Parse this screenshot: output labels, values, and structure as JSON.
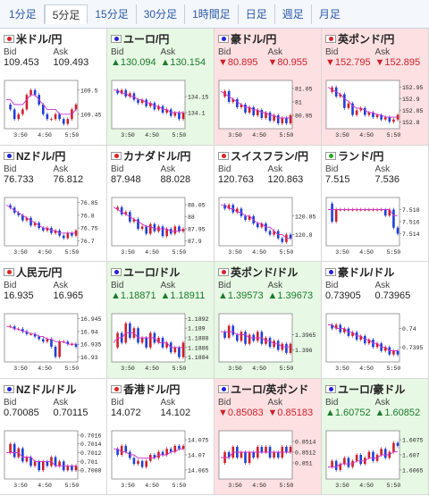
{
  "tabs": [
    {
      "label": "1分足",
      "active": false
    },
    {
      "label": "5分足",
      "active": true
    },
    {
      "label": "15分足",
      "active": false
    },
    {
      "label": "30分足",
      "active": false
    },
    {
      "label": "1時間足",
      "active": false
    },
    {
      "label": "日足",
      "active": false
    },
    {
      "label": "週足",
      "active": false
    },
    {
      "label": "月足",
      "active": false
    }
  ],
  "cards": [
    {
      "name": "米ドル/円",
      "trend": "flat",
      "bid_label": "Bid",
      "ask_label": "Ask",
      "bid": "109.453",
      "ask": "109.493",
      "flag": "red",
      "y_ticks": [
        "109.5",
        "109.45"
      ],
      "y_range": [
        109.42,
        109.52
      ],
      "x_ticks": [
        "3:50",
        "4:50",
        "5:50"
      ],
      "series": [
        109.47,
        109.46,
        109.44,
        109.45,
        109.46,
        109.49,
        109.5,
        109.49,
        109.47,
        109.45,
        109.44,
        109.44,
        109.45,
        109.44,
        109.43,
        109.44,
        109.46,
        109.47
      ],
      "ma": [
        109.48,
        109.48,
        109.47,
        109.47,
        109.47,
        109.48,
        109.49,
        109.49,
        109.48,
        109.47,
        109.46,
        109.46,
        109.46,
        109.45,
        109.45,
        109.45,
        109.45,
        109.46
      ]
    },
    {
      "name": "ユーロ/円",
      "trend": "up",
      "bid_label": "Bid",
      "ask_label": "Ask",
      "bid": "▲130.094",
      "ask": "▲130.154",
      "flag": "blue",
      "y_ticks": [
        "134.15",
        "134.1"
      ],
      "y_range": [
        134.05,
        134.2
      ],
      "x_ticks": [
        "3:50",
        "4:50",
        "5:50"
      ],
      "series": [
        134.17,
        134.16,
        134.17,
        134.15,
        134.16,
        134.14,
        134.13,
        134.14,
        134.12,
        134.13,
        134.11,
        134.12,
        134.1,
        134.11,
        134.09,
        134.1,
        134.08,
        134.1
      ],
      "ma": [
        134.17,
        134.17,
        134.16,
        134.16,
        134.15,
        134.15,
        134.14,
        134.14,
        134.13,
        134.13,
        134.12,
        134.12,
        134.11,
        134.11,
        134.1,
        134.1,
        134.1,
        134.1
      ]
    },
    {
      "name": "豪ドル/円",
      "trend": "down",
      "bid_label": "Bid",
      "ask_label": "Ask",
      "bid": "▼80.895",
      "ask": "▼80.955",
      "flag": "blue",
      "y_ticks": [
        "81.05",
        "81",
        "80.95"
      ],
      "y_range": [
        80.9,
        81.08
      ],
      "x_ticks": [
        "3:50",
        "4:50",
        "5:50"
      ],
      "series": [
        81.02,
        81.04,
        81.0,
        81.01,
        80.98,
        80.99,
        80.96,
        80.98,
        80.95,
        80.97,
        80.94,
        80.96,
        80.93,
        80.95,
        80.92,
        80.94,
        80.92,
        80.95
      ],
      "ma": [
        81.04,
        81.03,
        81.02,
        81.01,
        81.0,
        80.99,
        80.98,
        80.98,
        80.97,
        80.97,
        80.96,
        80.96,
        80.95,
        80.95,
        80.94,
        80.94,
        80.94,
        80.94
      ]
    },
    {
      "name": "英ポンド/円",
      "trend": "down",
      "bid_label": "Bid",
      "ask_label": "Ask",
      "bid": "▼152.795",
      "ask": "▼152.895",
      "flag": "red",
      "y_ticks": [
        "152.95",
        "152.9",
        "152.85",
        "152.8"
      ],
      "y_range": [
        152.77,
        152.98
      ],
      "x_ticks": [
        "3:50",
        "4:50",
        "5:50"
      ],
      "series": [
        152.93,
        152.95,
        152.91,
        152.92,
        152.86,
        152.88,
        152.83,
        152.85,
        152.86,
        152.83,
        152.84,
        152.82,
        152.83,
        152.81,
        152.82,
        152.8,
        152.81,
        152.83
      ],
      "ma": [
        152.95,
        152.94,
        152.93,
        152.92,
        152.9,
        152.89,
        152.87,
        152.86,
        152.86,
        152.85,
        152.84,
        152.84,
        152.83,
        152.83,
        152.82,
        152.82,
        152.82,
        152.82
      ]
    },
    {
      "name": "NZドル/円",
      "trend": "flat",
      "bid_label": "Bid",
      "ask_label": "Ask",
      "bid": "76.733",
      "ask": "76.812",
      "flag": "blue",
      "y_ticks": [
        "76.85",
        "76.8",
        "76.75",
        "76.7"
      ],
      "y_range": [
        76.68,
        76.87
      ],
      "x_ticks": [
        "3:50",
        "4:50",
        "5:50"
      ],
      "series": [
        76.84,
        76.83,
        76.81,
        76.8,
        76.78,
        76.79,
        76.76,
        76.77,
        76.75,
        76.74,
        76.75,
        76.73,
        76.74,
        76.72,
        76.71,
        76.73,
        76.72,
        76.74
      ],
      "ma": [
        76.84,
        76.83,
        76.82,
        76.81,
        76.8,
        76.79,
        76.78,
        76.77,
        76.76,
        76.75,
        76.75,
        76.74,
        76.74,
        76.73,
        76.73,
        76.73,
        76.73,
        76.73
      ]
    },
    {
      "name": "カナダドル/円",
      "trend": "flat",
      "bid_label": "Bid",
      "ask_label": "Ask",
      "bid": "87.948",
      "ask": "88.028",
      "flag": "red",
      "y_ticks": [
        "88.05",
        "88",
        "87.95",
        "87.9"
      ],
      "y_range": [
        87.88,
        88.08
      ],
      "x_ticks": [
        "3:50",
        "4:50",
        "5:50"
      ],
      "series": [
        88.03,
        88.04,
        88.01,
        88.02,
        87.98,
        87.99,
        87.95,
        87.96,
        87.93,
        87.97,
        87.94,
        87.96,
        87.92,
        87.95,
        87.93,
        87.96,
        87.94,
        87.95
      ],
      "ma": [
        88.04,
        88.03,
        88.02,
        88.01,
        88.0,
        87.99,
        87.98,
        87.97,
        87.96,
        87.96,
        87.95,
        87.95,
        87.95,
        87.95,
        87.94,
        87.94,
        87.94,
        87.95
      ]
    },
    {
      "name": "スイスフラン/円",
      "trend": "flat",
      "bid_label": "Bid",
      "ask_label": "Ask",
      "bid": "120.763",
      "ask": "120.863",
      "flag": "red",
      "y_ticks": [
        "120.85",
        "120.8"
      ],
      "y_range": [
        120.77,
        120.9
      ],
      "x_ticks": [
        "3:50",
        "4:50",
        "5:50"
      ],
      "series": [
        120.88,
        120.87,
        120.88,
        120.86,
        120.87,
        120.85,
        120.84,
        120.85,
        120.83,
        120.82,
        120.83,
        120.81,
        120.8,
        120.81,
        120.79,
        120.78,
        120.8,
        120.79
      ],
      "ma": [
        120.88,
        120.88,
        120.87,
        120.87,
        120.86,
        120.86,
        120.85,
        120.85,
        120.84,
        120.83,
        120.83,
        120.82,
        120.82,
        120.81,
        120.8,
        120.8,
        120.79,
        120.79
      ]
    },
    {
      "name": "ランド/円",
      "trend": "flat",
      "bid_label": "Bid",
      "ask_label": "Ask",
      "bid": "7.515",
      "ask": "7.536",
      "flag": "green",
      "y_ticks": [
        "7.518",
        "7.516",
        "7.514"
      ],
      "y_range": [
        7.512,
        7.52
      ],
      "x_ticks": [
        "3:50",
        "4:50",
        "5:50"
      ],
      "series": [
        7.519,
        7.516,
        7.518,
        7.518,
        7.518,
        7.518,
        7.518,
        7.518,
        7.518,
        7.518,
        7.518,
        7.518,
        7.518,
        7.518,
        7.517,
        7.518,
        7.515,
        7.514
      ],
      "ma": [
        7.518,
        7.518,
        7.518,
        7.518,
        7.518,
        7.518,
        7.518,
        7.518,
        7.518,
        7.518,
        7.518,
        7.518,
        7.518,
        7.518,
        7.518,
        7.518,
        7.517,
        7.517
      ]
    },
    {
      "name": "人民元/円",
      "trend": "flat",
      "bid_label": "Bid",
      "ask_label": "Ask",
      "bid": "16.935",
      "ask": "16.965",
      "flag": "red",
      "y_ticks": [
        "16.945",
        "16.94",
        "16.935",
        "16.93"
      ],
      "y_range": [
        16.928,
        16.947
      ],
      "x_ticks": [
        "3:50",
        "4:50",
        "5:50"
      ],
      "series": [
        16.942,
        16.942,
        16.941,
        16.941,
        16.94,
        16.939,
        16.939,
        16.938,
        16.937,
        16.936,
        16.937,
        16.934,
        16.93,
        16.936,
        16.936,
        16.935,
        16.935,
        16.934
      ],
      "ma": [
        16.942,
        16.942,
        16.941,
        16.941,
        16.94,
        16.94,
        16.939,
        16.939,
        16.938,
        16.938,
        16.937,
        16.937,
        16.936,
        16.936,
        16.936,
        16.935,
        16.935,
        16.935
      ]
    },
    {
      "name": "ユーロ/ドル",
      "trend": "up",
      "bid_label": "Bid",
      "ask_label": "Ask",
      "bid": "▲1.18871",
      "ask": "▲1.18911",
      "flag": "blue",
      "y_ticks": [
        "1.1892",
        "1.189",
        "1.1888",
        "1.1886",
        "1.1884"
      ],
      "y_range": [
        1.1883,
        1.1893
      ],
      "x_ticks": [
        "3:50",
        "4:50",
        "5:50"
      ],
      "series": [
        1.1886,
        1.1889,
        1.1887,
        1.1891,
        1.1888,
        1.189,
        1.1887,
        1.1888,
        1.1886,
        1.1889,
        1.1887,
        1.1888,
        1.1886,
        1.1887,
        1.1885,
        1.1886,
        1.1884,
        1.1887
      ],
      "ma": [
        1.1887,
        1.1888,
        1.1888,
        1.1889,
        1.1889,
        1.1889,
        1.1888,
        1.1888,
        1.1888,
        1.1888,
        1.1888,
        1.1887,
        1.1887,
        1.1887,
        1.1886,
        1.1886,
        1.1886,
        1.1886
      ]
    },
    {
      "name": "英ポンド/ドル",
      "trend": "up",
      "bid_label": "Bid",
      "ask_label": "Ask",
      "bid": "▲1.39573",
      "ask": "▲1.39673",
      "flag": "red",
      "y_ticks": [
        "1.3965",
        "1.396"
      ],
      "y_range": [
        1.3956,
        1.3972
      ],
      "x_ticks": [
        "3:50",
        "4:50",
        "5:50"
      ],
      "series": [
        1.3966,
        1.3964,
        1.3968,
        1.3965,
        1.3963,
        1.3966,
        1.3962,
        1.3965,
        1.3963,
        1.3966,
        1.3962,
        1.3964,
        1.3961,
        1.3963,
        1.396,
        1.3962,
        1.3959,
        1.3962
      ],
      "ma": [
        1.3966,
        1.3966,
        1.3966,
        1.3966,
        1.3965,
        1.3965,
        1.3965,
        1.3964,
        1.3964,
        1.3964,
        1.3964,
        1.3963,
        1.3963,
        1.3962,
        1.3962,
        1.3961,
        1.3961,
        1.3961
      ]
    },
    {
      "name": "豪ドル/ドル",
      "trend": "flat",
      "bid_label": "Bid",
      "ask_label": "Ask",
      "bid": "0.73905",
      "ask": "0.73965",
      "flag": "blue",
      "y_ticks": [
        "0.74",
        "0.7395"
      ],
      "y_range": [
        0.7391,
        0.7404
      ],
      "x_ticks": [
        "3:50",
        "4:50",
        "5:50"
      ],
      "series": [
        0.7401,
        0.74,
        0.7401,
        0.7399,
        0.74,
        0.7398,
        0.7399,
        0.7397,
        0.7398,
        0.7396,
        0.7397,
        0.7395,
        0.7396,
        0.7394,
        0.7395,
        0.7393,
        0.7394,
        0.7393
      ],
      "ma": [
        0.7401,
        0.7401,
        0.74,
        0.74,
        0.74,
        0.7399,
        0.7399,
        0.7398,
        0.7398,
        0.7397,
        0.7397,
        0.7396,
        0.7396,
        0.7395,
        0.7395,
        0.7394,
        0.7394,
        0.7394
      ]
    },
    {
      "name": "NZドル/ドル",
      "trend": "flat",
      "bid_label": "Bid",
      "ask_label": "Ask",
      "bid": "0.70085",
      "ask": "0.70115",
      "flag": "blue",
      "y_ticks": [
        "0.7016",
        "0.7014",
        "0.7012",
        "0.701",
        "0.7008"
      ],
      "y_range": [
        0.7006,
        0.7017
      ],
      "x_ticks": [
        "3:50",
        "4:50",
        "5:50"
      ],
      "series": [
        0.7012,
        0.7014,
        0.7011,
        0.7013,
        0.701,
        0.7011,
        0.7009,
        0.701,
        0.7008,
        0.701,
        0.7009,
        0.7011,
        0.7009,
        0.701,
        0.7008,
        0.7009,
        0.7008,
        0.7009
      ],
      "ma": [
        0.7012,
        0.7012,
        0.7012,
        0.7012,
        0.7011,
        0.7011,
        0.7011,
        0.701,
        0.701,
        0.701,
        0.701,
        0.701,
        0.7009,
        0.7009,
        0.7009,
        0.7009,
        0.7009,
        0.7009
      ]
    },
    {
      "name": "香港ドル/円",
      "trend": "flat",
      "bid_label": "Bid",
      "ask_label": "Ask",
      "bid": "14.072",
      "ask": "14.102",
      "flag": "red",
      "y_ticks": [
        "14.075",
        "14.07",
        "14.065"
      ],
      "y_range": [
        14.062,
        14.078
      ],
      "x_ticks": [
        "3:50",
        "4:50",
        "5:50"
      ],
      "series": [
        14.072,
        14.07,
        14.073,
        14.071,
        14.069,
        14.067,
        14.068,
        14.066,
        14.068,
        14.07,
        14.069,
        14.071,
        14.07,
        14.072,
        14.071,
        14.073,
        14.072,
        14.073
      ],
      "ma": [
        14.072,
        14.072,
        14.071,
        14.071,
        14.07,
        14.07,
        14.069,
        14.069,
        14.069,
        14.069,
        14.069,
        14.07,
        14.07,
        14.07,
        14.071,
        14.071,
        14.072,
        14.072
      ]
    },
    {
      "name": "ユーロ/英ポンド",
      "trend": "down",
      "bid_label": "Bid",
      "ask_label": "Ask",
      "bid": "▼0.85083",
      "ask": "▼0.85183",
      "flag": "blue",
      "y_ticks": [
        "0.8514",
        "0.8512",
        "0.851"
      ],
      "y_range": [
        0.8507,
        0.8516
      ],
      "x_ticks": [
        "3:50",
        "4:50",
        "5:50"
      ],
      "series": [
        0.851,
        0.8512,
        0.8511,
        0.8513,
        0.8511,
        0.8512,
        0.851,
        0.8512,
        0.8511,
        0.8513,
        0.8512,
        0.8513,
        0.8511,
        0.8512,
        0.8511,
        0.8513,
        0.8512,
        0.8513
      ],
      "ma": [
        0.8511,
        0.8511,
        0.8511,
        0.8512,
        0.8512,
        0.8512,
        0.8512,
        0.8512,
        0.8512,
        0.8512,
        0.8512,
        0.8512,
        0.8512,
        0.8512,
        0.8512,
        0.8512,
        0.8512,
        0.8512
      ]
    },
    {
      "name": "ユーロ/豪ドル",
      "trend": "up",
      "bid_label": "Bid",
      "ask_label": "Ask",
      "bid": "▲1.60752",
      "ask": "▲1.60852",
      "flag": "blue",
      "y_ticks": [
        "1.6075",
        "1.607",
        "1.6065"
      ],
      "y_range": [
        1.6062,
        1.6078
      ],
      "x_ticks": [
        "3:50",
        "4:50",
        "5:50"
      ],
      "series": [
        1.6066,
        1.6068,
        1.6065,
        1.6067,
        1.6069,
        1.6066,
        1.6068,
        1.607,
        1.6067,
        1.6069,
        1.6071,
        1.6068,
        1.607,
        1.6072,
        1.6069,
        1.6071,
        1.6074,
        1.6073
      ],
      "ma": [
        1.6066,
        1.6066,
        1.6066,
        1.6067,
        1.6067,
        1.6067,
        1.6067,
        1.6068,
        1.6068,
        1.6068,
        1.6069,
        1.6069,
        1.6069,
        1.607,
        1.607,
        1.607,
        1.6071,
        1.6071
      ]
    }
  ],
  "colors": {
    "up_bg": "#e7f8e4",
    "down_bg": "#fde0e2",
    "candle_up": "#d0202a",
    "candle_down": "#1f3fd6",
    "ma_line": "#cc33cc",
    "up_text": "#1a7a2a",
    "down_text": "#d0202a"
  }
}
